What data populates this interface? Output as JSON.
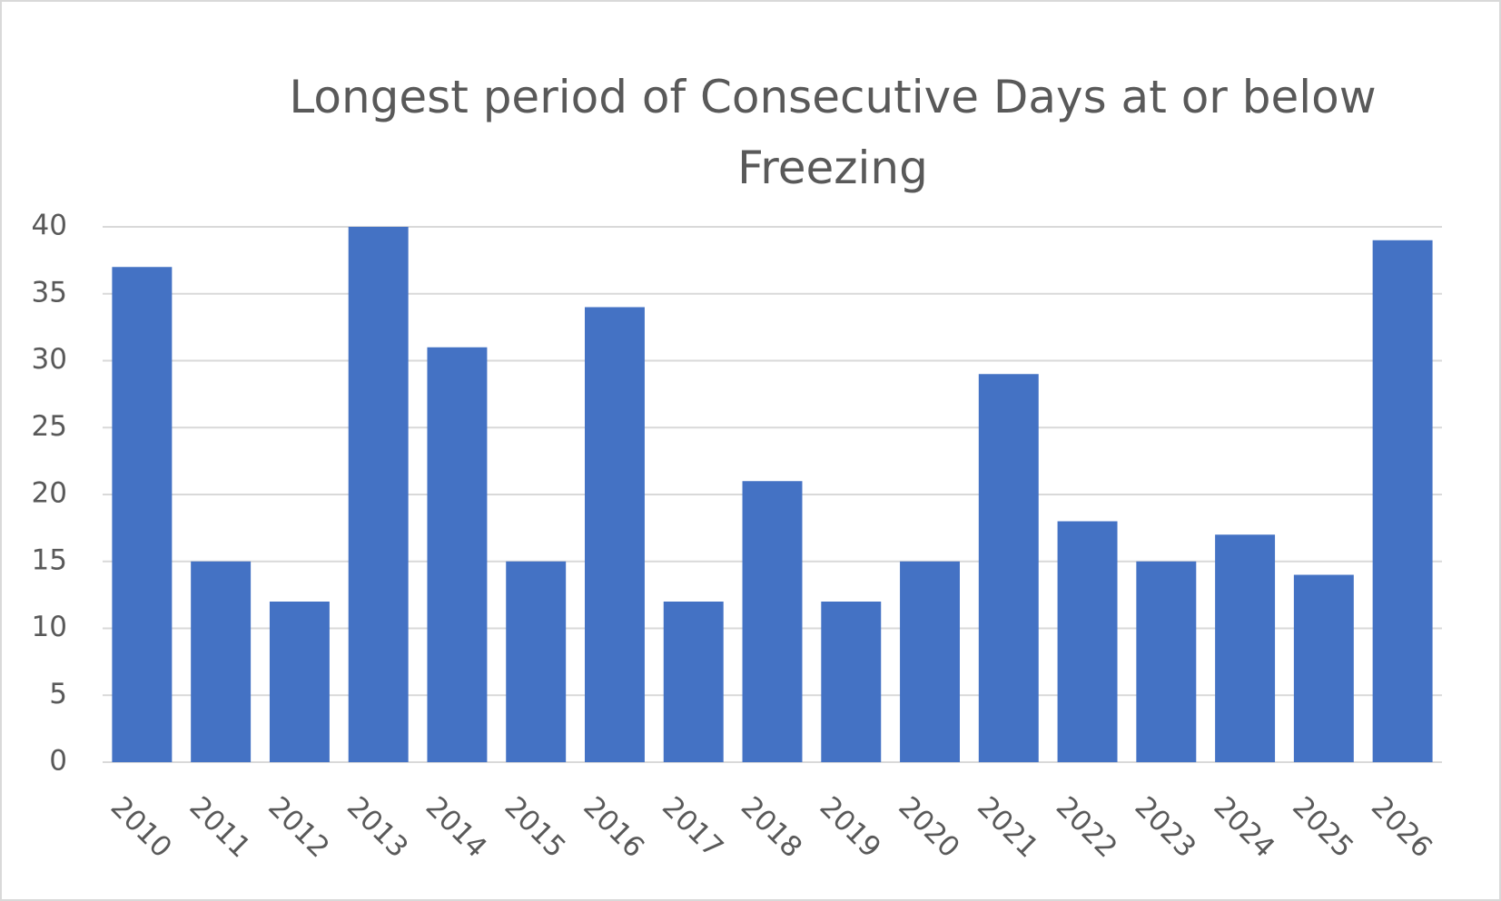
{
  "chart_data": {
    "type": "bar",
    "title": "Longest period of Consecutive Days at or below Freezing",
    "categories": [
      "2010",
      "2011",
      "2012",
      "2013",
      "2014",
      "2015",
      "2016",
      "2017",
      "2018",
      "2019",
      "2020",
      "2021",
      "2022",
      "2023",
      "2024",
      "2025",
      "2026"
    ],
    "values": [
      37,
      15,
      12,
      40,
      31,
      15,
      34,
      12,
      21,
      12,
      15,
      29,
      18,
      15,
      17,
      14,
      39
    ],
    "color": "#4472c4",
    "ylim": [
      0,
      40
    ],
    "yticks": [
      0,
      5,
      10,
      15,
      20,
      25,
      30,
      35,
      40
    ],
    "grid": true
  }
}
